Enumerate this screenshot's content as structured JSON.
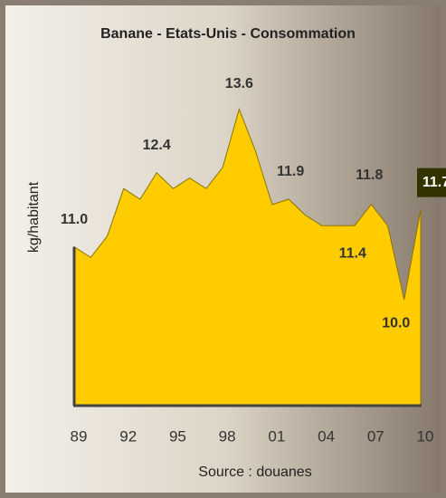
{
  "chart_data": {
    "type": "area",
    "title": "Banane - Etats-Unis - Consommation",
    "y_label": "kg/habitant",
    "source": "Source : douanes",
    "categories": [
      "89",
      null,
      null,
      "92",
      null,
      null,
      "95",
      null,
      null,
      "98",
      null,
      null,
      "01",
      null,
      null,
      "04",
      null,
      null,
      "07",
      null,
      null,
      "10"
    ],
    "values": [
      11.0,
      10.8,
      11.2,
      12.1,
      11.9,
      12.4,
      12.1,
      12.3,
      12.1,
      12.5,
      13.6,
      12.8,
      11.8,
      11.9,
      11.6,
      11.4,
      11.4,
      11.4,
      11.8,
      11.4,
      10.0,
      11.7
    ],
    "value_labels": [
      "11.0",
      null,
      null,
      null,
      null,
      "12.4",
      null,
      null,
      null,
      null,
      "13.6",
      null,
      null,
      "11.9",
      null,
      null,
      "11.4",
      null,
      "11.8",
      null,
      "10.0",
      "11.7"
    ],
    "color": "#ffcc00",
    "ylim": [
      8,
      14.5
    ]
  }
}
